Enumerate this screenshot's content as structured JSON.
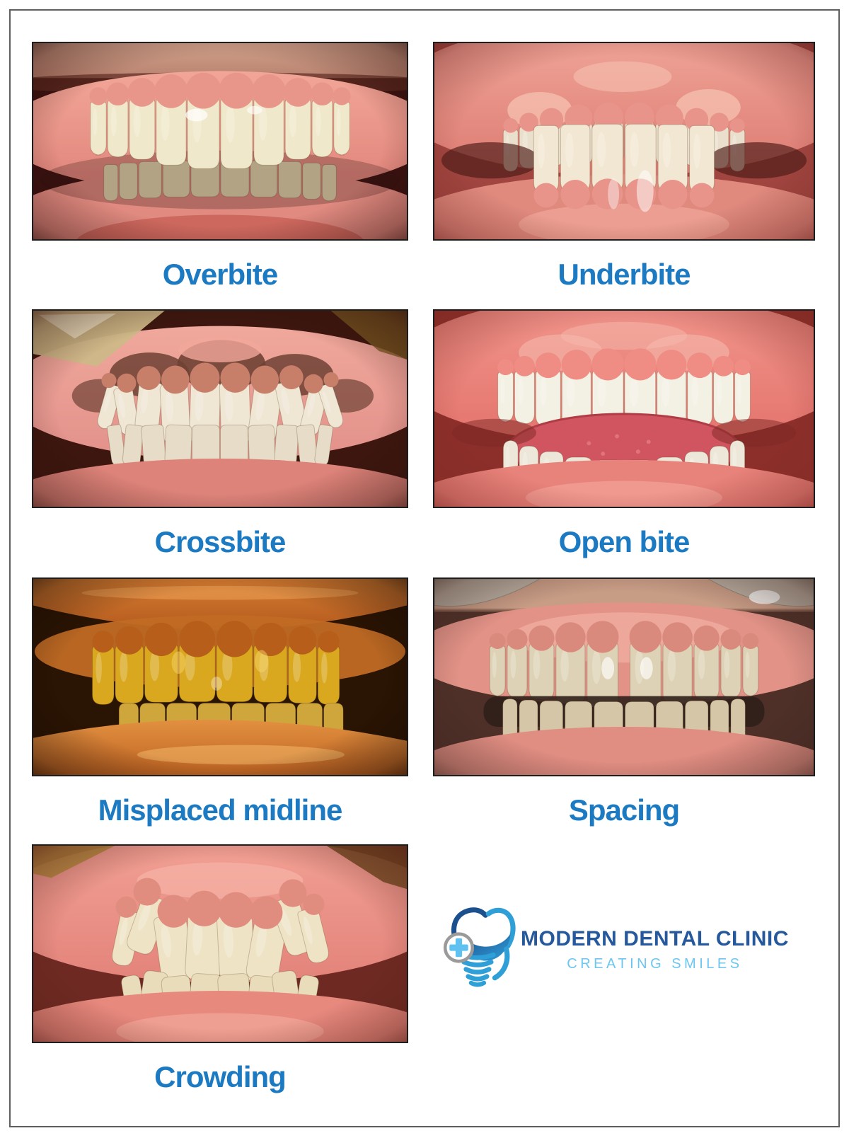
{
  "poster": {
    "background": "#ffffff",
    "frame_color": "#5f5f5f",
    "label_color": "#1b7ac2",
    "photo_border_color": "#1e1e1e"
  },
  "items": [
    {
      "label": "Overbite",
      "variant": "overbite",
      "palette": {
        "dark": "#3a1210",
        "skin": "#cfa18a",
        "skin2": "#b98270",
        "lipShadow": "#5e2c22",
        "gumHi": "#f2a697",
        "gum": "#e0837a",
        "gumLow": "#e08a80",
        "gumLow2": "#c96258",
        "teeth": "#f0e8ca",
        "teethLow": "#e0d4ae",
        "scallop": "#e8968a",
        "vignette": "#2a0b08"
      }
    },
    {
      "label": "Underbite",
      "variant": "underbite",
      "palette": {
        "dark": "#a14540",
        "gumHi": "#f2a99c",
        "gum": "#dd7b72",
        "patch": "#f6c4b4",
        "gumLow": "#e08a7e",
        "gumLowHi": "#f2ab9e",
        "teeth": "#eadfcc",
        "teethFront": "#f2e7d2",
        "scallop": "#e8948a",
        "shadow": "#4a1815",
        "vignette": "#6e2521"
      }
    },
    {
      "label": "Crossbite",
      "variant": "crossbite",
      "palette": {
        "dark": "#3c160f",
        "retractor": "#cdb888",
        "retractorHi": "#f5ecd2",
        "retractor2": "#7a5a22",
        "gumHi": "#f0a89c",
        "gum": "#e2918a",
        "pink": "#f2a79b",
        "brown": "#6f4134",
        "teeth": "#efe6d4",
        "teethLow": "#e6dcc8",
        "gumLow": "#dd837a",
        "scallop": "#c87f6a",
        "vignette": "#30110b"
      }
    },
    {
      "label": "Open bite",
      "variant": "openbite",
      "palette": {
        "dark": "#8c2f2a",
        "gumHi": "#f2978d",
        "gum": "#e3736c",
        "patch": "#f5b9ad",
        "tongue": "#d05560",
        "tongueEdge": "#b03c46",
        "tongueDot": "#e57a80",
        "teeth": "#f3f0e4",
        "teethLow": "#ece7d8",
        "gumLow": "#e8837b",
        "gumLowHi": "#f4a99c",
        "scallop": "#ef8d84",
        "vignette": "#7e2823"
      }
    },
    {
      "label": "Misplaced midline",
      "variant": "midline",
      "palette": {
        "dark": "#160b04",
        "inner": "#2a1403",
        "lipHi": "#d67c31",
        "lip": "#b35a1e",
        "lipGloss1": "#f2a75c",
        "lipLow": "#e29040",
        "lipLow2": "#bf6423",
        "lipGloss2": "#f2b86a",
        "gum": "#c06a24",
        "teeth": "#d9a81f",
        "teethLow": "#cfa63c",
        "scallop": "#b75e1b",
        "glare": "#f5d468",
        "vignette": "#120803"
      }
    },
    {
      "label": "Spacing",
      "variant": "spacing",
      "palette": {
        "dark": "#4e3028",
        "skin": "#c89d86",
        "skinLine": "#a97f6b",
        "retractor": "#b9b2a6",
        "retractorEdge": "#8d867c",
        "gum": "#e29287",
        "gumHi": "#f0ada0",
        "teeth": "#ded2b6",
        "teethLow": "#d4c6a6",
        "slit": "#30201a",
        "gumLow": "#e08d82",
        "scallop": "#d98a7d",
        "vignette": "#3a221c"
      }
    },
    {
      "label": "Crowding",
      "variant": "crowding",
      "palette": {
        "dark": "#6e2a22",
        "gold": "#b28c3e",
        "brown": "#6e4a20",
        "gumHi": "#f2a195",
        "gum": "#e3837a",
        "gumGlow": "#f6b4a6",
        "teeth": "#efe3c6",
        "teethLow": "#e9dcba",
        "gumLow": "#e8897e",
        "gumLowHi": "#f4ae9e",
        "scallop": "#e08d7f",
        "vignette": "#541d16"
      }
    }
  ],
  "logo": {
    "name": "MODERN DENTAL CLINIC",
    "tagline": "CREATING SMILES",
    "name_color": "#26589c",
    "tagline_color": "#6cc6f0",
    "icon_name": "tooth-implant-magnifier-logo-icon",
    "icon_colors": {
      "navy": "#1c4f8e",
      "blue": "#2f9fd8",
      "light_blue": "#56b9e8",
      "ring_gray": "#9a9a9a",
      "cross": "#5ec1f0"
    }
  }
}
